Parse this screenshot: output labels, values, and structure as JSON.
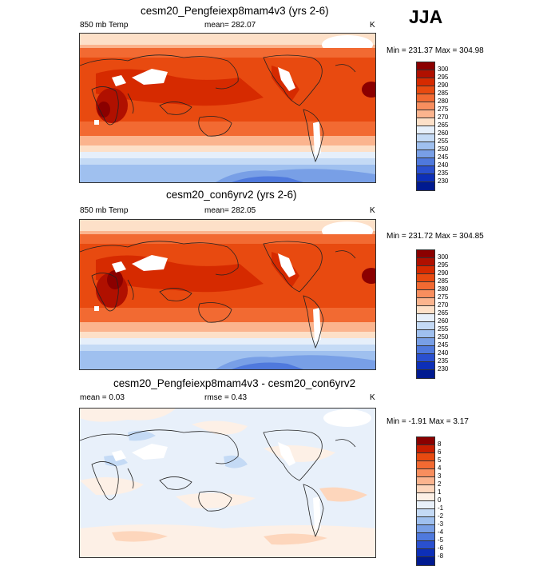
{
  "season": "JJA",
  "panels": [
    {
      "title": "cesm20_Pengfeiexp8mam4v3 (yrs 2-6)",
      "left_label": "850 mb Temp",
      "center_label": "mean= 282.07",
      "units": "K",
      "minmax": "Min = 231.37 Max = 304.98",
      "colorbar": {
        "labels": [
          "300",
          "295",
          "290",
          "285",
          "280",
          "275",
          "270",
          "265",
          "260",
          "255",
          "250",
          "245",
          "240",
          "235",
          "230"
        ],
        "colors": [
          "#8b0000",
          "#b01000",
          "#d62a00",
          "#e84a10",
          "#f26a32",
          "#f88e5e",
          "#fbb48e",
          "#fde0c8",
          "#e6effa",
          "#c4daf5",
          "#9fc0ef",
          "#789fe6",
          "#4f79dd",
          "#2a50cf",
          "#0d2fb8",
          "#001a90"
        ]
      }
    },
    {
      "title": "cesm20_con6yrv2 (yrs 2-6)",
      "left_label": "850 mb Temp",
      "center_label": "mean= 282.05",
      "units": "K",
      "minmax": "Min = 231.72 Max = 304.85",
      "colorbar": {
        "labels": [
          "300",
          "295",
          "290",
          "285",
          "280",
          "275",
          "270",
          "265",
          "260",
          "255",
          "250",
          "245",
          "240",
          "235",
          "230"
        ],
        "colors": [
          "#8b0000",
          "#b01000",
          "#d62a00",
          "#e84a10",
          "#f26a32",
          "#f88e5e",
          "#fbb48e",
          "#fde0c8",
          "#e6effa",
          "#c4daf5",
          "#9fc0ef",
          "#789fe6",
          "#4f79dd",
          "#2a50cf",
          "#0d2fb8",
          "#001a90"
        ]
      }
    },
    {
      "title": "cesm20_Pengfeiexp8mam4v3 - cesm20_con6yrv2",
      "left_label": "mean =   0.03",
      "center_label": "rmse =   0.43",
      "units": "K",
      "minmax": "Min =  -1.91 Max =   3.17",
      "colorbar": {
        "labels": [
          "8",
          "6",
          "5",
          "4",
          "3",
          "2",
          "1",
          "0",
          "-1",
          "-2",
          "-3",
          "-4",
          "-5",
          "-6",
          "-8"
        ],
        "colors": [
          "#8b0000",
          "#c81e00",
          "#e84a10",
          "#f26a32",
          "#f88e5e",
          "#fbb48e",
          "#fdd6bc",
          "#fdf0e6",
          "#e8f0fa",
          "#c4daf5",
          "#9fc0ef",
          "#789fe6",
          "#4f79dd",
          "#2a50cf",
          "#0d2fb8",
          "#001a90"
        ]
      }
    }
  ]
}
